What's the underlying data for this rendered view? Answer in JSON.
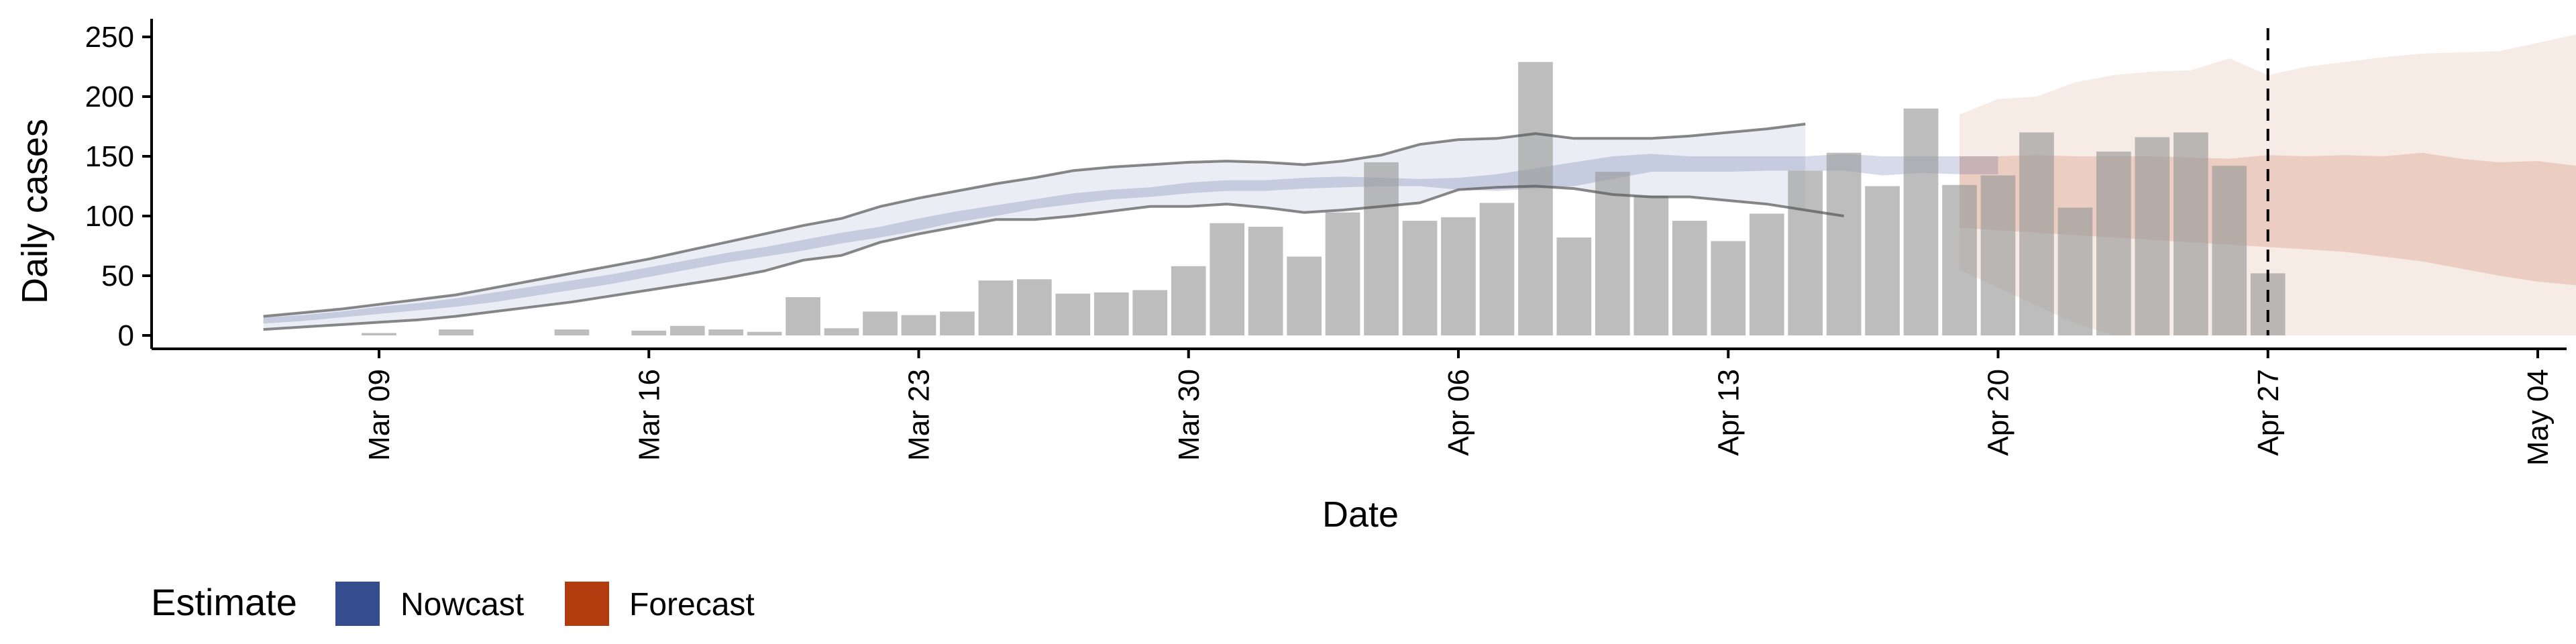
{
  "chart_data": {
    "type": "bar",
    "xlabel": "Date",
    "ylabel": "Daily cases",
    "ylim": [
      -10,
      265
    ],
    "y_ticks": [
      0,
      50,
      100,
      150,
      200,
      250
    ],
    "x_range": [
      "2020-03-03",
      "2020-05-04"
    ],
    "x_ticks": [
      {
        "date": "2020-03-09",
        "label": "Mar 09"
      },
      {
        "date": "2020-03-16",
        "label": "Mar 16"
      },
      {
        "date": "2020-03-23",
        "label": "Mar 23"
      },
      {
        "date": "2020-03-30",
        "label": "Mar 30"
      },
      {
        "date": "2020-04-06",
        "label": "Apr 06"
      },
      {
        "date": "2020-04-13",
        "label": "Apr 13"
      },
      {
        "date": "2020-04-20",
        "label": "Apr 20"
      },
      {
        "date": "2020-04-27",
        "label": "Apr 27"
      },
      {
        "date": "2020-05-04",
        "label": "May 04"
      }
    ],
    "grid": false,
    "reference_line": {
      "date": "2020-04-27",
      "style": "dashed"
    },
    "observed_cases": {
      "start_date": "2020-03-09",
      "values": [
        2,
        0,
        5,
        0,
        0,
        5,
        0,
        4,
        8,
        5,
        3,
        32,
        6,
        20,
        17,
        20,
        46,
        47,
        35,
        36,
        38,
        58,
        94,
        91,
        66,
        103,
        145,
        96,
        99,
        111,
        229,
        82,
        137,
        117,
        96,
        79,
        102,
        138,
        153,
        125,
        190,
        126,
        134,
        170,
        107,
        154,
        166,
        170,
        142,
        52
      ]
    },
    "series": [
      {
        "name": "Nowcast",
        "color": "#354C8F",
        "start_date": "2020-03-06",
        "inner_lower": [
          10,
          12,
          15,
          18,
          21,
          24,
          28,
          33,
          38,
          43,
          49,
          55,
          61,
          66,
          71,
          77,
          82,
          88,
          95,
          100,
          106,
          110,
          114,
          116,
          119,
          121,
          121,
          123,
          124,
          125,
          125,
          122,
          121,
          123,
          125,
          131,
          137,
          137,
          137,
          138,
          138,
          138,
          134,
          136,
          135,
          135
        ],
        "inner_upper": [
          15,
          17,
          20,
          24,
          27,
          31,
          36,
          41,
          46,
          51,
          57,
          63,
          69,
          74,
          80,
          86,
          91,
          98,
          104,
          109,
          114,
          119,
          122,
          124,
          128,
          130,
          130,
          132,
          133,
          132,
          131,
          132,
          135,
          140,
          145,
          150,
          152,
          150,
          150,
          150,
          150,
          152,
          150,
          150,
          150,
          150
        ],
        "outer_lower": [
          5,
          7,
          9,
          11,
          13,
          16,
          20,
          24,
          28,
          33,
          38,
          43,
          48,
          54,
          63,
          67,
          78,
          85,
          91,
          97,
          97,
          100,
          104,
          108,
          108,
          110,
          107,
          103,
          105,
          108,
          111,
          122,
          124,
          125,
          123,
          118,
          116,
          116,
          113,
          110,
          105,
          100
        ],
        "outer_upper": [
          16,
          19,
          22,
          26,
          30,
          34,
          40,
          46,
          52,
          58,
          64,
          71,
          78,
          85,
          92,
          98,
          108,
          115,
          121,
          127,
          132,
          138,
          141,
          143,
          145,
          146,
          145,
          143,
          146,
          151,
          160,
          164,
          165,
          169,
          165,
          165,
          165,
          167,
          170,
          173,
          177
        ]
      },
      {
        "name": "Forecast",
        "color": "#B23C0E",
        "start_date": "2020-04-19",
        "inner_lower": [
          90,
          88,
          86,
          84,
          82,
          80,
          78,
          76,
          74,
          72,
          70,
          66,
          62,
          56,
          50,
          45,
          42,
          40,
          39,
          39
        ],
        "inner_upper": [
          150,
          150,
          151,
          150,
          150,
          150,
          149,
          148,
          151,
          150,
          151,
          150,
          153,
          148,
          145,
          146,
          142,
          138,
          136,
          133
        ],
        "outer_lower": [
          55,
          40,
          25,
          10,
          0,
          0,
          0,
          0,
          0,
          0,
          0,
          0,
          0,
          0,
          0,
          0,
          0,
          0,
          0,
          0
        ],
        "outer_upper": [
          185,
          198,
          200,
          212,
          218,
          221,
          222,
          232,
          218,
          225,
          229,
          233,
          236,
          237,
          238,
          245,
          252
        ]
      }
    ],
    "legend": {
      "title": "Estimate",
      "position": "bottom-left",
      "items": [
        "Nowcast",
        "Forecast"
      ]
    }
  }
}
